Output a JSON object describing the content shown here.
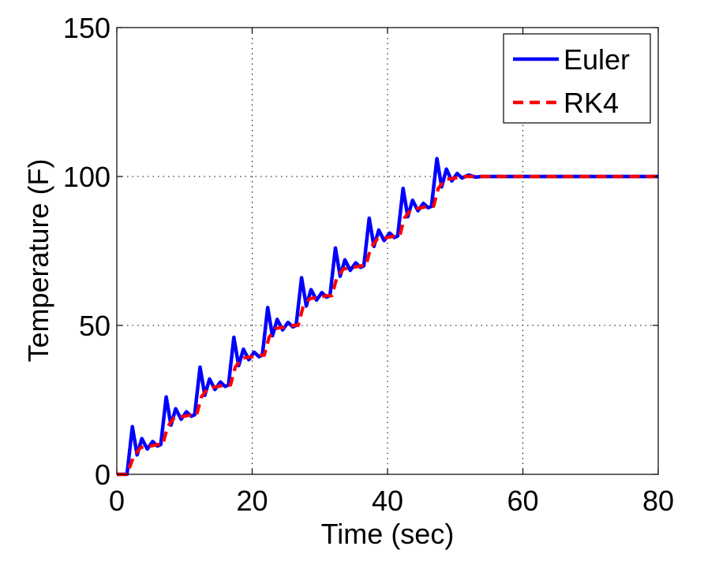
{
  "chart_data": {
    "type": "line",
    "title": "",
    "xlabel": "Time (sec)",
    "ylabel": "Temperature (F)",
    "xlim": [
      0,
      80
    ],
    "ylim": [
      0,
      150
    ],
    "xticks": [
      0,
      20,
      40,
      60,
      80
    ],
    "yticks": [
      0,
      50,
      100,
      150
    ],
    "xtick_labels": [
      "0",
      "20",
      "40",
      "60",
      "80"
    ],
    "ytick_labels": [
      "0",
      "50",
      "100",
      "150"
    ],
    "grid": true,
    "legend_position": "top-right",
    "series": [
      {
        "name": "Euler",
        "color": "#0000ff",
        "style": "solid",
        "x": [
          0,
          1,
          1.5,
          2.3,
          3,
          3.7,
          4.5,
          5.3,
          6,
          6.5,
          7.3,
          8,
          8.7,
          9.5,
          10.3,
          11,
          11.5,
          12.3,
          13,
          13.7,
          14.5,
          15.3,
          16,
          16.5,
          17.3,
          18,
          18.7,
          19.5,
          20.3,
          21,
          21.5,
          22.3,
          23,
          23.7,
          24.5,
          25.3,
          26,
          26.5,
          27.3,
          28,
          28.7,
          29.5,
          30.3,
          31,
          31.5,
          32.3,
          33,
          33.7,
          34.5,
          35.3,
          36,
          36.5,
          37.3,
          38,
          38.7,
          39.5,
          40.3,
          41,
          41.5,
          42.3,
          43,
          43.7,
          44.5,
          45.3,
          46,
          46.5,
          47.3,
          48,
          48.7,
          49.5,
          50.3,
          51,
          52,
          53,
          54,
          56,
          60,
          70,
          80
        ],
        "y": [
          0,
          0,
          0,
          16,
          6.5,
          12,
          8.5,
          11,
          9.5,
          10,
          26,
          16.5,
          22,
          18.5,
          21,
          19.5,
          20,
          36,
          26.5,
          32,
          28.5,
          31,
          29.5,
          30,
          46,
          36.5,
          42,
          38.5,
          41,
          39.5,
          40,
          56,
          46.5,
          52,
          48.5,
          51,
          49.5,
          50,
          66,
          56.5,
          62,
          58.5,
          61,
          59.5,
          60,
          76,
          66.5,
          72,
          68.5,
          71,
          69.5,
          70,
          86,
          76.5,
          82,
          78.5,
          81,
          79.5,
          80,
          96,
          86.5,
          92,
          88.5,
          91,
          89.5,
          90,
          106,
          96.5,
          102.5,
          98.5,
          101,
          99.5,
          100.5,
          99.8,
          100,
          100,
          100,
          100,
          100
        ]
      },
      {
        "name": "RK4",
        "color": "#ff0000",
        "style": "dashed",
        "x": [
          0,
          1.5,
          2.5,
          3.5,
          5,
          6,
          6.8,
          7.5,
          8.5,
          10,
          11,
          11.8,
          12.5,
          13.5,
          15,
          16,
          16.8,
          17.5,
          18.5,
          20,
          21,
          21.8,
          22.5,
          23.5,
          25,
          26,
          26.8,
          27.5,
          28.5,
          30,
          31,
          31.8,
          32.5,
          33.5,
          35,
          36,
          36.8,
          37.5,
          38.5,
          40,
          41,
          41.8,
          42.5,
          43.5,
          45,
          46,
          46.8,
          47.5,
          48.5,
          50,
          51,
          55,
          60,
          80
        ],
        "y": [
          0,
          0,
          6,
          9,
          9.5,
          10,
          10,
          16,
          19,
          19.5,
          20,
          20,
          26,
          29,
          29.5,
          30,
          30,
          36,
          39,
          39.5,
          40,
          40,
          46,
          49,
          49.5,
          50,
          50,
          56,
          59,
          59.5,
          60,
          60,
          66,
          69,
          69.5,
          70,
          70,
          76,
          79,
          79.5,
          80,
          80,
          86,
          89,
          89.5,
          90,
          90,
          96,
          99,
          99.5,
          100,
          100,
          100,
          100
        ]
      }
    ]
  }
}
